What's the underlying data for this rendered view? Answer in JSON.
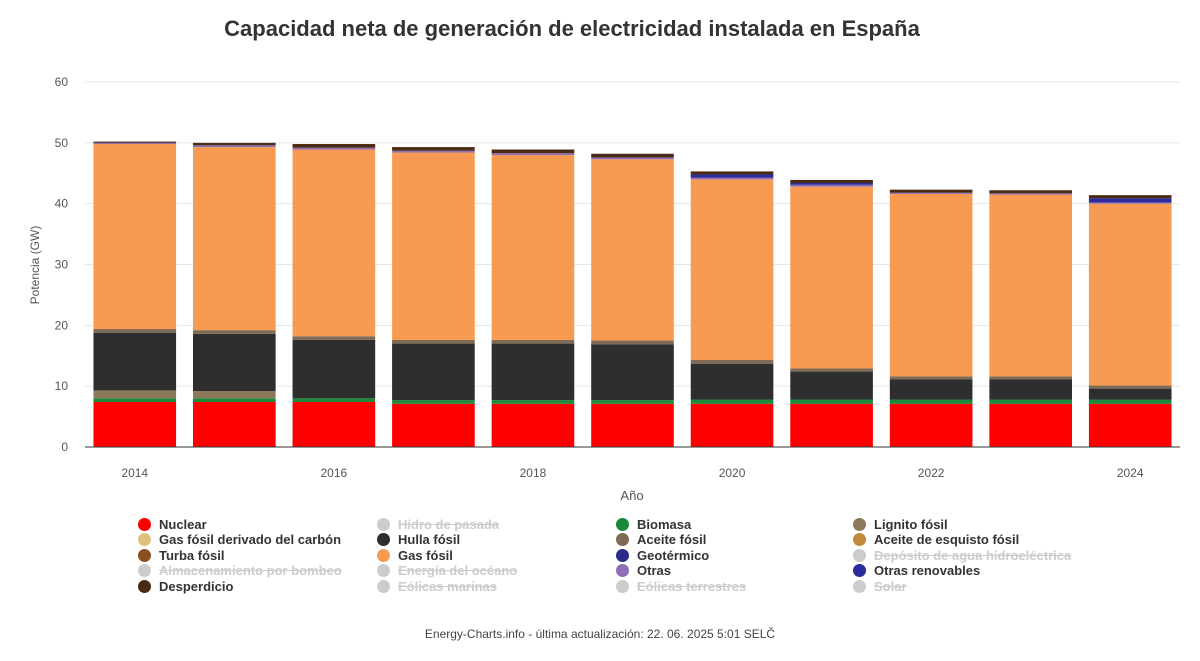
{
  "chart_data": {
    "type": "bar",
    "stacked": true,
    "title": "Capacidad neta de generación de electricidad instalada en España",
    "xlabel": "Año",
    "ylabel": "Potencia (GW)",
    "ylim": [
      0,
      60
    ],
    "yticks": [
      0,
      10,
      20,
      30,
      40,
      50,
      60
    ],
    "grid": true,
    "legend_position": "bottom",
    "categories": [
      "2014",
      "2015",
      "2016",
      "2017",
      "2018",
      "2019",
      "2020",
      "2021",
      "2022",
      "2023",
      "2024"
    ],
    "xtick_labels": [
      "2014",
      "",
      "2016",
      "",
      "2018",
      "",
      "2020",
      "",
      "2022",
      "",
      "2024"
    ],
    "series": [
      {
        "name": "Nuclear",
        "color": "#ff0000",
        "visible": true,
        "values": [
          7.4,
          7.4,
          7.4,
          7.1,
          7.1,
          7.1,
          7.1,
          7.1,
          7.1,
          7.1,
          7.1
        ]
      },
      {
        "name": "Biomasa",
        "color": "#1a8a3a",
        "visible": true,
        "values": [
          0.6,
          0.6,
          0.6,
          0.6,
          0.6,
          0.6,
          0.7,
          0.7,
          0.7,
          0.7,
          0.7
        ]
      },
      {
        "name": "Lignito fósil",
        "color": "#8c7a5a",
        "visible": true,
        "values": [
          1.3,
          1.2,
          0.0,
          0.0,
          0.0,
          0.0,
          0.0,
          0.0,
          0.0,
          0.0,
          0.0
        ]
      },
      {
        "name": "Hulla fósil",
        "color": "#2e2e2e",
        "visible": true,
        "values": [
          9.5,
          9.4,
          9.6,
          9.3,
          9.3,
          9.2,
          5.9,
          4.6,
          3.3,
          3.3,
          1.8
        ]
      },
      {
        "name": "Aceite fósil",
        "color": "#7f6a55",
        "visible": true,
        "values": [
          0.6,
          0.6,
          0.6,
          0.6,
          0.6,
          0.6,
          0.6,
          0.5,
          0.5,
          0.5,
          0.5
        ]
      },
      {
        "name": "Gas fósil",
        "color": "#f79a52",
        "visible": true,
        "values": [
          30.4,
          30.1,
          30.7,
          30.8,
          30.4,
          29.8,
          29.7,
          29.9,
          30.0,
          29.9,
          29.9
        ]
      },
      {
        "name": "Otras",
        "color": "#8e6fb7",
        "visible": true,
        "values": [
          0.2,
          0.3,
          0.3,
          0.3,
          0.3,
          0.3,
          0.3,
          0.3,
          0.2,
          0.2,
          0.2
        ]
      },
      {
        "name": "Otras renovables",
        "color": "#2a2a9a",
        "visible": true,
        "values": [
          0.0,
          0.0,
          0.0,
          0.0,
          0.0,
          0.0,
          0.5,
          0.3,
          0.0,
          0.0,
          0.7
        ]
      },
      {
        "name": "Desperdicio",
        "color": "#4a2a10",
        "visible": true,
        "values": [
          0.2,
          0.4,
          0.6,
          0.6,
          0.6,
          0.6,
          0.5,
          0.5,
          0.5,
          0.5,
          0.5
        ]
      }
    ]
  },
  "legend": [
    {
      "label": "Nuclear",
      "color": "#ff0000",
      "hidden": false
    },
    {
      "label": "Hidro de pasada",
      "color": "#cccccc",
      "hidden": true
    },
    {
      "label": "Biomasa",
      "color": "#1a8a3a",
      "hidden": false
    },
    {
      "label": "Lignito fósil",
      "color": "#8c7a5a",
      "hidden": false
    },
    {
      "label": "Gas fósil derivado del carbón",
      "color": "#e0c080",
      "hidden": false
    },
    {
      "label": "Hulla fósil",
      "color": "#2e2e2e",
      "hidden": false
    },
    {
      "label": "Aceite fósil",
      "color": "#7f6a55",
      "hidden": false
    },
    {
      "label": "Aceite de esquisto fósil",
      "color": "#c08a3a",
      "hidden": false
    },
    {
      "label": "Turba fósil",
      "color": "#8a5020",
      "hidden": false
    },
    {
      "label": "Gas fósil",
      "color": "#f79a52",
      "hidden": false
    },
    {
      "label": "Geotérmico",
      "color": "#2a2a8a",
      "hidden": false
    },
    {
      "label": "Depósito de agua hidroeléctrica",
      "color": "#cccccc",
      "hidden": true
    },
    {
      "label": "Almacenamiento por bombeo",
      "color": "#cccccc",
      "hidden": true
    },
    {
      "label": "Energía del océano",
      "color": "#cccccc",
      "hidden": true
    },
    {
      "label": "Otras",
      "color": "#8e6fb7",
      "hidden": false
    },
    {
      "label": "Otras renovables",
      "color": "#2a2a9a",
      "hidden": false
    },
    {
      "label": "Desperdicio",
      "color": "#4a2a10",
      "hidden": false
    },
    {
      "label": "Eólicas marinas",
      "color": "#cccccc",
      "hidden": true
    },
    {
      "label": "Eólicas terrestres",
      "color": "#cccccc",
      "hidden": true
    },
    {
      "label": "Solar",
      "color": "#cccccc",
      "hidden": true
    }
  ],
  "credits": "Energy-Charts.info - última actualización: 22. 06. 2025 5:01 SELČ"
}
